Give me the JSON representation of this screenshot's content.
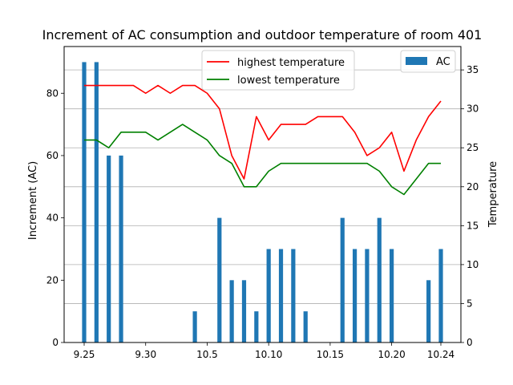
{
  "chart_data": {
    "type": "bar+line",
    "title": "Increment of AC consumption and outdoor temperature of room 401",
    "xlabel": "",
    "ylabel_left": "Increment (AC)",
    "ylabel_right": "Temperature",
    "x_tick_labels": [
      "9.25",
      "9.30",
      "10.5",
      "10.10",
      "10.15",
      "10.20",
      "10.24"
    ],
    "x_tick_index": [
      0,
      5,
      10,
      15,
      20,
      25,
      29
    ],
    "ylim_left": [
      0,
      95
    ],
    "ylim_right": [
      0,
      38
    ],
    "yticks_left": [
      0,
      20,
      40,
      60,
      80
    ],
    "yticks_right": [
      0,
      5,
      10,
      15,
      20,
      25,
      30,
      35
    ],
    "grid": "horizontal, right axis",
    "legend_right": "top-right",
    "legend_left": "upper center",
    "bar_series": {
      "name": "AC",
      "color": "#1f77b4",
      "values": [
        90,
        90,
        60,
        60,
        0,
        0,
        0,
        0,
        0,
        10,
        0,
        40,
        20,
        20,
        10,
        30,
        30,
        30,
        10,
        0,
        0,
        40,
        30,
        30,
        40,
        30,
        0,
        0,
        20,
        30
      ]
    },
    "line_series": [
      {
        "name": "highest temperature",
        "color": "#ff0000",
        "values": [
          33,
          33,
          33,
          33,
          33,
          32,
          33,
          32,
          33,
          33,
          32,
          30,
          24,
          21,
          29,
          26,
          28,
          28,
          28,
          29,
          29,
          29,
          27,
          24,
          25,
          27,
          22,
          26,
          29,
          31
        ]
      },
      {
        "name": "lowest temperature",
        "color": "#008000",
        "values": [
          26,
          26,
          25,
          27,
          27,
          27,
          26,
          27,
          28,
          27,
          26,
          24,
          23,
          20,
          20,
          22,
          23,
          23,
          23,
          23,
          23,
          23,
          23,
          23,
          22,
          20,
          19,
          21,
          23,
          23
        ]
      }
    ]
  }
}
